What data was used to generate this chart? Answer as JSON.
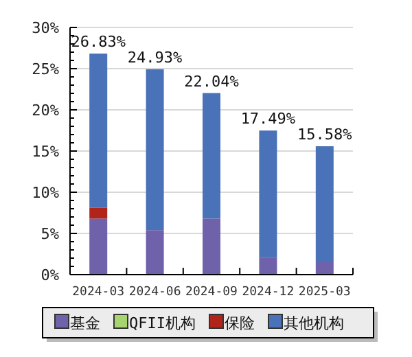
{
  "chart_data": {
    "type": "bar",
    "stacked": true,
    "categories": [
      "2024-03",
      "2024-06",
      "2024-09",
      "2024-12",
      "2025-03"
    ],
    "series": [
      {
        "name": "基金",
        "color": "#7062aa",
        "values": [
          6.8,
          5.4,
          6.8,
          2.1,
          1.5
        ]
      },
      {
        "name": "QFII机构",
        "color": "#a8d46f",
        "values": [
          null,
          null,
          null,
          null,
          null
        ]
      },
      {
        "name": "保险",
        "color": "#b0241a",
        "values": [
          1.3,
          null,
          null,
          null,
          null
        ]
      },
      {
        "name": "其他机构",
        "color": "#4a72b8",
        "values": [
          18.73,
          19.53,
          15.24,
          15.39,
          14.08
        ]
      }
    ],
    "totals": [
      "26.83%",
      "24.93%",
      "22.04%",
      "17.49%",
      "15.58%"
    ],
    "ylim": [
      0,
      30
    ],
    "yticks": [
      {
        "value": 0,
        "label": "0%"
      },
      {
        "value": 5,
        "label": "5%"
      },
      {
        "value": 10,
        "label": "10%"
      },
      {
        "value": 15,
        "label": "15%"
      },
      {
        "value": 20,
        "label": "20%"
      },
      {
        "value": 25,
        "label": "25%"
      },
      {
        "value": 30,
        "label": "30%"
      }
    ],
    "grid": "y",
    "legend": "bottom"
  }
}
